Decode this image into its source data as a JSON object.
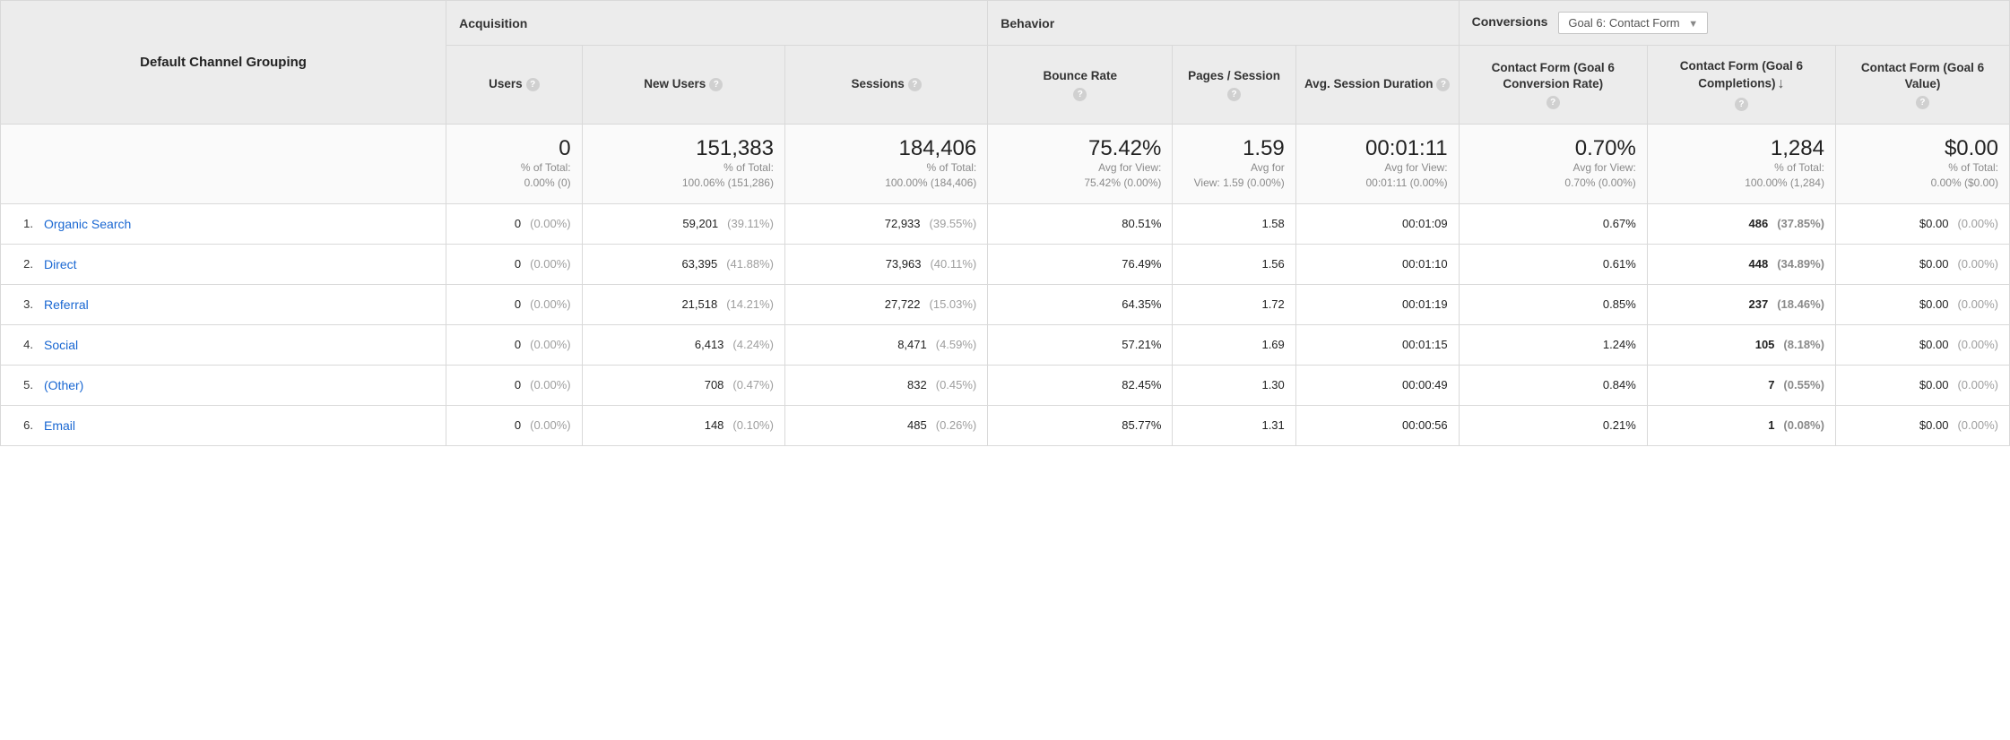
{
  "colors": {
    "header_bg": "#ececec",
    "border": "#d9d9d9",
    "link": "#1967d2",
    "muted": "#9e9e9e",
    "totals_bg": "#fafafa"
  },
  "dimension_label": "Default Channel Grouping",
  "groups": {
    "acquisition": "Acquisition",
    "behavior": "Behavior",
    "conversions": "Conversions"
  },
  "goal_select_label": "Goal 6: Contact Form",
  "columns": {
    "users": "Users",
    "new_users": "New Users",
    "sessions": "Sessions",
    "bounce_rate": "Bounce Rate",
    "pages_session": "Pages / Session",
    "avg_duration": "Avg. Session Duration",
    "conv_rate": "Contact Form (Goal 6 Conversion Rate)",
    "completions": "Contact Form (Goal 6 Completions)",
    "goal_value": "Contact Form (Goal 6 Value)"
  },
  "totals": {
    "users": {
      "big": "0",
      "sub1": "% of Total:",
      "sub2": "0.00% (0)"
    },
    "new_users": {
      "big": "151,383",
      "sub1": "% of Total:",
      "sub2": "100.06% (151,286)"
    },
    "sessions": {
      "big": "184,406",
      "sub1": "% of Total:",
      "sub2": "100.00% (184,406)"
    },
    "bounce_rate": {
      "big": "75.42%",
      "sub1": "Avg for View:",
      "sub2": "75.42% (0.00%)"
    },
    "pages_session": {
      "big": "1.59",
      "sub1": "Avg for",
      "sub2": "View: 1.59 (0.00%)"
    },
    "avg_duration": {
      "big": "00:01:11",
      "sub1": "Avg for View:",
      "sub2": "00:01:11 (0.00%)"
    },
    "conv_rate": {
      "big": "0.70%",
      "sub1": "Avg for View:",
      "sub2": "0.70% (0.00%)"
    },
    "completions": {
      "big": "1,284",
      "sub1": "% of Total:",
      "sub2": "100.00% (1,284)"
    },
    "goal_value": {
      "big": "$0.00",
      "sub1": "% of Total:",
      "sub2": "0.00% ($0.00)"
    }
  },
  "rows": [
    {
      "idx": "1.",
      "name": "Organic Search",
      "users": {
        "v": "0",
        "p": "(0.00%)"
      },
      "new_users": {
        "v": "59,201",
        "p": "(39.11%)"
      },
      "sessions": {
        "v": "72,933",
        "p": "(39.55%)"
      },
      "bounce_rate": "80.51%",
      "pages_session": "1.58",
      "avg_duration": "00:01:09",
      "conv_rate": "0.67%",
      "completions": {
        "v": "486",
        "p": "(37.85%)"
      },
      "goal_value": {
        "v": "$0.00",
        "p": "(0.00%)"
      }
    },
    {
      "idx": "2.",
      "name": "Direct",
      "users": {
        "v": "0",
        "p": "(0.00%)"
      },
      "new_users": {
        "v": "63,395",
        "p": "(41.88%)"
      },
      "sessions": {
        "v": "73,963",
        "p": "(40.11%)"
      },
      "bounce_rate": "76.49%",
      "pages_session": "1.56",
      "avg_duration": "00:01:10",
      "conv_rate": "0.61%",
      "completions": {
        "v": "448",
        "p": "(34.89%)"
      },
      "goal_value": {
        "v": "$0.00",
        "p": "(0.00%)"
      }
    },
    {
      "idx": "3.",
      "name": "Referral",
      "users": {
        "v": "0",
        "p": "(0.00%)"
      },
      "new_users": {
        "v": "21,518",
        "p": "(14.21%)"
      },
      "sessions": {
        "v": "27,722",
        "p": "(15.03%)"
      },
      "bounce_rate": "64.35%",
      "pages_session": "1.72",
      "avg_duration": "00:01:19",
      "conv_rate": "0.85%",
      "completions": {
        "v": "237",
        "p": "(18.46%)"
      },
      "goal_value": {
        "v": "$0.00",
        "p": "(0.00%)"
      }
    },
    {
      "idx": "4.",
      "name": "Social",
      "users": {
        "v": "0",
        "p": "(0.00%)"
      },
      "new_users": {
        "v": "6,413",
        "p": "(4.24%)"
      },
      "sessions": {
        "v": "8,471",
        "p": "(4.59%)"
      },
      "bounce_rate": "57.21%",
      "pages_session": "1.69",
      "avg_duration": "00:01:15",
      "conv_rate": "1.24%",
      "completions": {
        "v": "105",
        "p": "(8.18%)"
      },
      "goal_value": {
        "v": "$0.00",
        "p": "(0.00%)"
      }
    },
    {
      "idx": "5.",
      "name": "(Other)",
      "users": {
        "v": "0",
        "p": "(0.00%)"
      },
      "new_users": {
        "v": "708",
        "p": "(0.47%)"
      },
      "sessions": {
        "v": "832",
        "p": "(0.45%)"
      },
      "bounce_rate": "82.45%",
      "pages_session": "1.30",
      "avg_duration": "00:00:49",
      "conv_rate": "0.84%",
      "completions": {
        "v": "7",
        "p": "(0.55%)"
      },
      "goal_value": {
        "v": "$0.00",
        "p": "(0.00%)"
      }
    },
    {
      "idx": "6.",
      "name": "Email",
      "users": {
        "v": "0",
        "p": "(0.00%)"
      },
      "new_users": {
        "v": "148",
        "p": "(0.10%)"
      },
      "sessions": {
        "v": "485",
        "p": "(0.26%)"
      },
      "bounce_rate": "85.77%",
      "pages_session": "1.31",
      "avg_duration": "00:00:56",
      "conv_rate": "0.21%",
      "completions": {
        "v": "1",
        "p": "(0.08%)"
      },
      "goal_value": {
        "v": "$0.00",
        "p": "(0.00%)"
      }
    }
  ]
}
